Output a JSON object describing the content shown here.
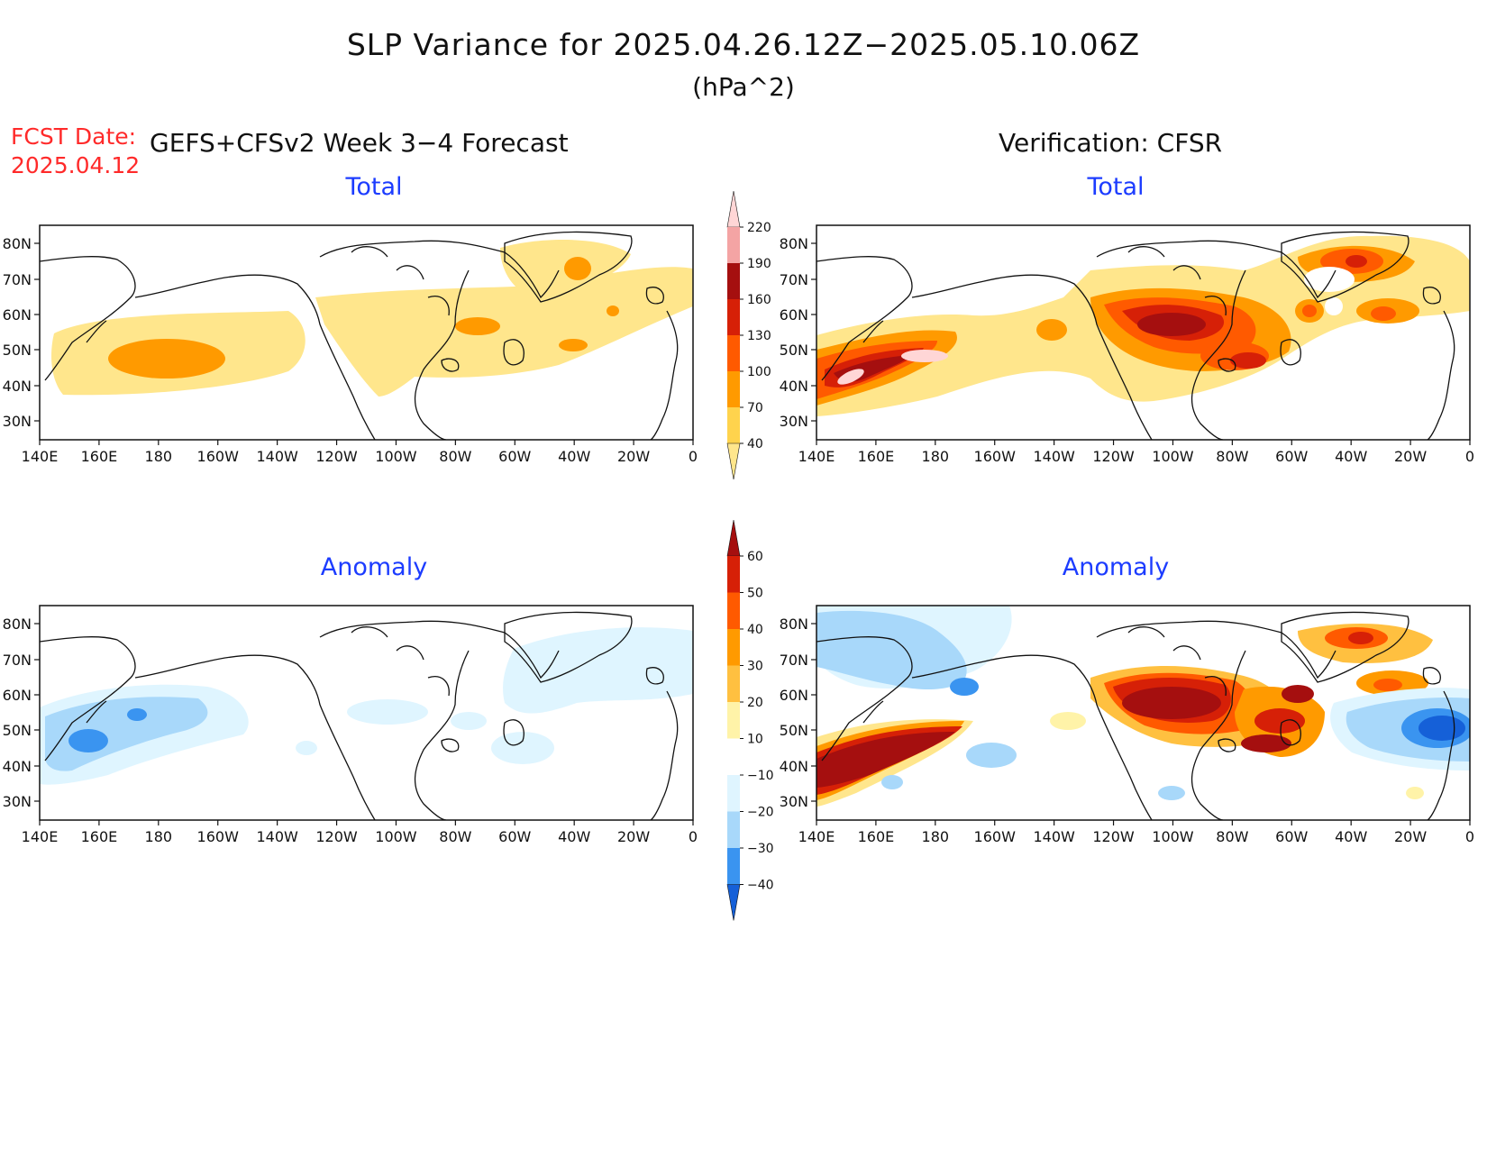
{
  "title": "SLP Variance for 2025.04.26.12Z−2025.05.10.06Z",
  "units": "(hPa^2)",
  "fcst_label": "FCST Date:",
  "fcst_date": "2025.04.12",
  "left_header": "GEFS+CFSv2 Week 3−4 Forecast",
  "right_header": "Verification: CFSR",
  "panels": {
    "top_left": "Total",
    "top_right": "Total",
    "bottom_left": "Anomaly",
    "bottom_right": "Anomaly"
  },
  "lat_labels": [
    "80N",
    "70N",
    "60N",
    "50N",
    "40N",
    "30N"
  ],
  "lon_labels": [
    "140E",
    "160E",
    "180",
    "160W",
    "140W",
    "120W",
    "100W",
    "80W",
    "60W",
    "40W",
    "20W",
    "0"
  ],
  "total_colorbar": {
    "labels": [
      "220",
      "190",
      "160",
      "130",
      "100",
      "70",
      "40"
    ],
    "colors": [
      "#ffd6d6",
      "#f4a4a4",
      "#a50f0f",
      "#d62007",
      "#ff5a00",
      "#ff9a00",
      "#ffd34d",
      "#ffe68c"
    ]
  },
  "anomaly_colorbar": {
    "labels": [
      "60",
      "50",
      "40",
      "30",
      "20",
      "10",
      "−10",
      "−20",
      "−30",
      "−40"
    ],
    "colors": [
      "#a50f0f",
      "#d62007",
      "#ff5a00",
      "#ff9a00",
      "#ffc040",
      "#fff3a8",
      "#ffffff",
      "#dff5ff",
      "#a8d8fa",
      "#3a94f0",
      "#1560d8"
    ]
  }
}
